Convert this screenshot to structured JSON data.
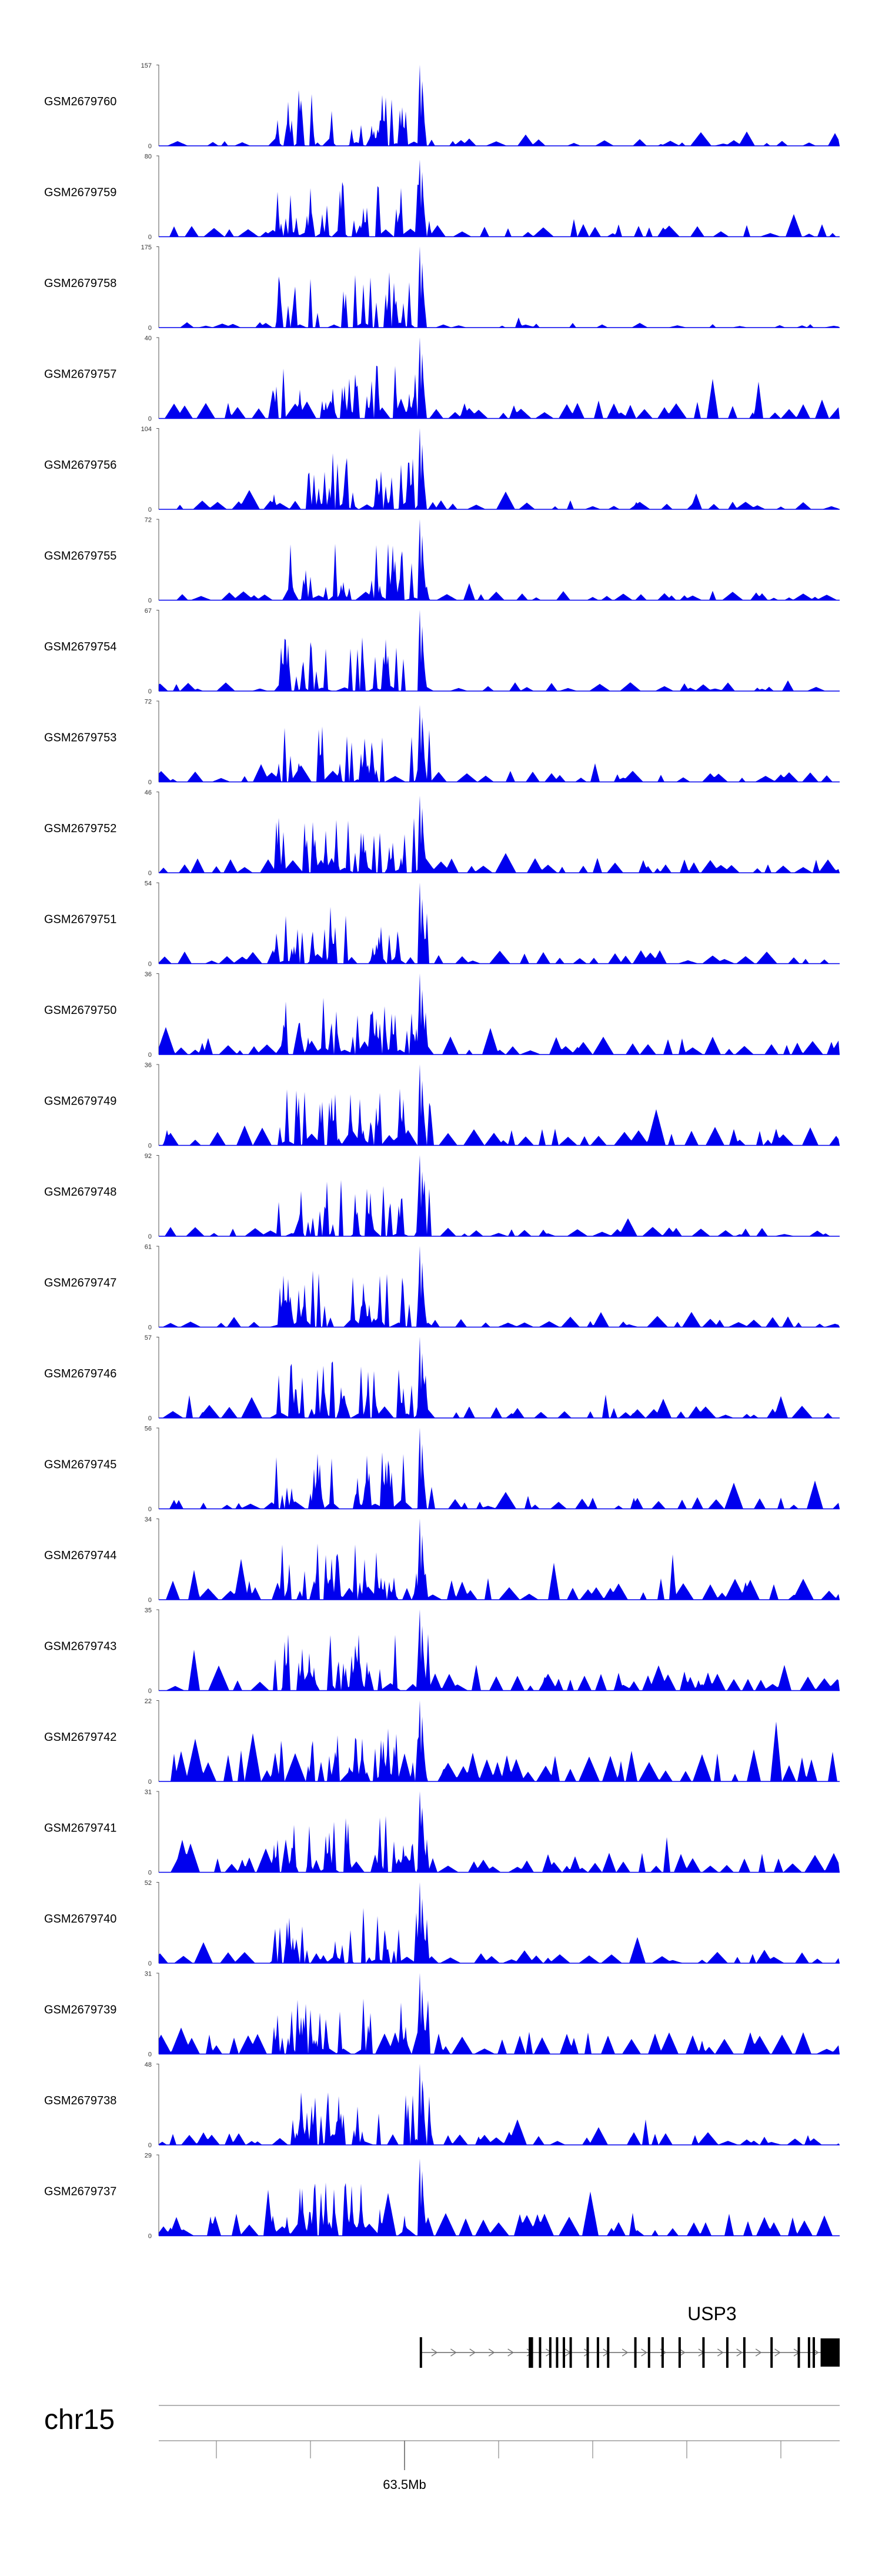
{
  "chart_data": {
    "type": "area",
    "chromosome": "chr15",
    "genome_axis": {
      "tick_label": "63.5Mb"
    },
    "tracks": [
      {
        "name": "GSM2679760",
        "ymax": "157",
        "ymin": "0",
        "peak_pos": 0.385,
        "peak_frac": 1.0,
        "bg": 0.08,
        "density": 0.55
      },
      {
        "name": "GSM2679759",
        "ymax": "80",
        "ymin": "0",
        "peak_pos": 0.385,
        "peak_frac": 0.95,
        "bg": 0.14,
        "density": 0.75
      },
      {
        "name": "GSM2679758",
        "ymax": "175",
        "ymin": "0",
        "peak_pos": 0.385,
        "peak_frac": 1.0,
        "bg": 0.06,
        "density": 0.45
      },
      {
        "name": "GSM2679757",
        "ymax": "40",
        "ymin": "0",
        "peak_pos": 0.385,
        "peak_frac": 1.0,
        "bg": 0.22,
        "density": 0.9
      },
      {
        "name": "GSM2679756",
        "ymax": "104",
        "ymin": "0",
        "peak_pos": 0.385,
        "peak_frac": 1.0,
        "bg": 0.1,
        "density": 0.7
      },
      {
        "name": "GSM2679755",
        "ymax": "72",
        "ymin": "0",
        "peak_pos": 0.385,
        "peak_frac": 1.0,
        "bg": 0.1,
        "density": 0.7
      },
      {
        "name": "GSM2679754",
        "ymax": "67",
        "ymin": "0",
        "peak_pos": 0.385,
        "peak_frac": 1.0,
        "bg": 0.1,
        "density": 0.6
      },
      {
        "name": "GSM2679753",
        "ymax": "72",
        "ymin": "0",
        "peak_pos": 0.385,
        "peak_frac": 0.95,
        "bg": 0.12,
        "density": 0.75
      },
      {
        "name": "GSM2679752",
        "ymax": "46",
        "ymin": "0",
        "peak_pos": 0.385,
        "peak_frac": 0.95,
        "bg": 0.16,
        "density": 0.8
      },
      {
        "name": "GSM2679751",
        "ymax": "54",
        "ymin": "0",
        "peak_pos": 0.385,
        "peak_frac": 1.0,
        "bg": 0.15,
        "density": 0.7
      },
      {
        "name": "GSM2679750",
        "ymax": "36",
        "ymin": "0",
        "peak_pos": 0.385,
        "peak_frac": 1.0,
        "bg": 0.2,
        "density": 0.85
      },
      {
        "name": "GSM2679749",
        "ymax": "36",
        "ymin": "0",
        "peak_pos": 0.385,
        "peak_frac": 1.0,
        "bg": 0.2,
        "density": 0.85
      },
      {
        "name": "GSM2679748",
        "ymax": "92",
        "ymin": "0",
        "peak_pos": 0.385,
        "peak_frac": 1.0,
        "bg": 0.1,
        "density": 0.7
      },
      {
        "name": "GSM2679747",
        "ymax": "61",
        "ymin": "0",
        "peak_pos": 0.385,
        "peak_frac": 1.0,
        "bg": 0.12,
        "density": 0.75
      },
      {
        "name": "GSM2679746",
        "ymax": "57",
        "ymin": "0",
        "peak_pos": 0.385,
        "peak_frac": 1.0,
        "bg": 0.14,
        "density": 0.75
      },
      {
        "name": "GSM2679745",
        "ymax": "56",
        "ymin": "0",
        "peak_pos": 0.385,
        "peak_frac": 1.0,
        "bg": 0.14,
        "density": 0.75
      },
      {
        "name": "GSM2679744",
        "ymax": "34",
        "ymin": "0",
        "peak_pos": 0.385,
        "peak_frac": 1.0,
        "bg": 0.24,
        "density": 0.9
      },
      {
        "name": "GSM2679743",
        "ymax": "35",
        "ymin": "0",
        "peak_pos": 0.385,
        "peak_frac": 1.0,
        "bg": 0.22,
        "density": 0.85
      },
      {
        "name": "GSM2679742",
        "ymax": "22",
        "ymin": "0",
        "peak_pos": 0.385,
        "peak_frac": 1.0,
        "bg": 0.35,
        "density": 1.0
      },
      {
        "name": "GSM2679741",
        "ymax": "31",
        "ymin": "0",
        "peak_pos": 0.385,
        "peak_frac": 1.0,
        "bg": 0.22,
        "density": 0.9
      },
      {
        "name": "GSM2679740",
        "ymax": "52",
        "ymin": "0",
        "peak_pos": 0.385,
        "peak_frac": 1.0,
        "bg": 0.15,
        "density": 0.8
      },
      {
        "name": "GSM2679739",
        "ymax": "31",
        "ymin": "0",
        "peak_pos": 0.385,
        "peak_frac": 1.0,
        "bg": 0.24,
        "density": 0.9
      },
      {
        "name": "GSM2679738",
        "ymax": "48",
        "ymin": "0",
        "peak_pos": 0.385,
        "peak_frac": 1.0,
        "bg": 0.14,
        "density": 0.7
      },
      {
        "name": "GSM2679737",
        "ymax": "29",
        "ymin": "0",
        "peak_pos": 0.385,
        "peak_frac": 0.95,
        "bg": 0.25,
        "density": 0.9
      }
    ],
    "gene": {
      "name": "USP3",
      "strand": "+",
      "start": 0.385,
      "end": 1.0,
      "exons": [
        0.385,
        0.545,
        0.548,
        0.56,
        0.575,
        0.585,
        0.595,
        0.605,
        0.63,
        0.645,
        0.66,
        0.7,
        0.72,
        0.74,
        0.765,
        0.8,
        0.835,
        0.86,
        0.9,
        0.94,
        0.955,
        0.962
      ],
      "utr_end": [
        0.972,
        1.0
      ]
    },
    "colors": {
      "signal": "#0000ee",
      "axis": "#555555",
      "gene": "#000000"
    }
  }
}
